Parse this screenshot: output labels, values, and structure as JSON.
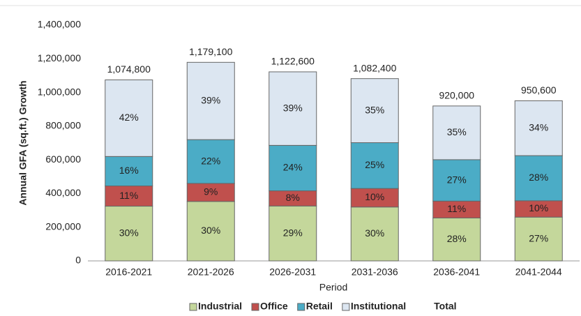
{
  "chart_data": {
    "type": "stacked_bar",
    "y_label": "Annual GFA (sq.ft.) Growth",
    "x_label": "Period",
    "categories": [
      "2016-2021",
      "2021-2026",
      "2026-2031",
      "2031-2036",
      "2036-2041",
      "2041-2044"
    ],
    "series": [
      {
        "name": "Industrial",
        "color": "#c4d79b",
        "values": [
          325000,
          353000,
          326000,
          320000,
          255000,
          260000
        ],
        "value_labels": [
          "30%",
          "30%",
          "29%",
          "30%",
          "28%",
          "27%"
        ]
      },
      {
        "name": "Office",
        "color": "#c0504d",
        "values": [
          120000,
          107000,
          90000,
          110000,
          100000,
          97000
        ],
        "value_labels": [
          "11%",
          "9%",
          "8%",
          "10%",
          "11%",
          "10%"
        ]
      },
      {
        "name": "Retail",
        "color": "#4bacc6",
        "values": [
          175000,
          260000,
          270000,
          272000,
          246000,
          268000
        ],
        "value_labels": [
          "16%",
          "22%",
          "24%",
          "25%",
          "27%",
          "28%"
        ]
      },
      {
        "name": "Institutional",
        "color": "#dce6f1",
        "values": [
          454800,
          459100,
          436600,
          380400,
          319000,
          325600
        ],
        "value_labels": [
          "42%",
          "39%",
          "39%",
          "35%",
          "35%",
          "34%"
        ]
      }
    ],
    "totals_name": "Total",
    "totals": [
      1074800,
      1179100,
      1122600,
      1082400,
      920000,
      950600
    ],
    "total_labels": [
      "1,074,800",
      "1,179,100",
      "1,122,600",
      "1,082,400",
      "920,000",
      "950,600"
    ],
    "ylim": [
      0,
      1400000
    ],
    "yticks": [
      0,
      {
        "value": 200000,
        "label": "200,000"
      },
      {
        "value": 400000,
        "label": "400,000"
      },
      {
        "value": 600000,
        "label": "600,000"
      },
      {
        "value": 800000,
        "label": "800,000"
      },
      {
        "value": 1000000,
        "label": "1,000,000"
      },
      {
        "value": 1200000,
        "label": "1,200,000"
      },
      {
        "value": 1400000,
        "label": "1,400,000"
      }
    ],
    "grid": false
  }
}
